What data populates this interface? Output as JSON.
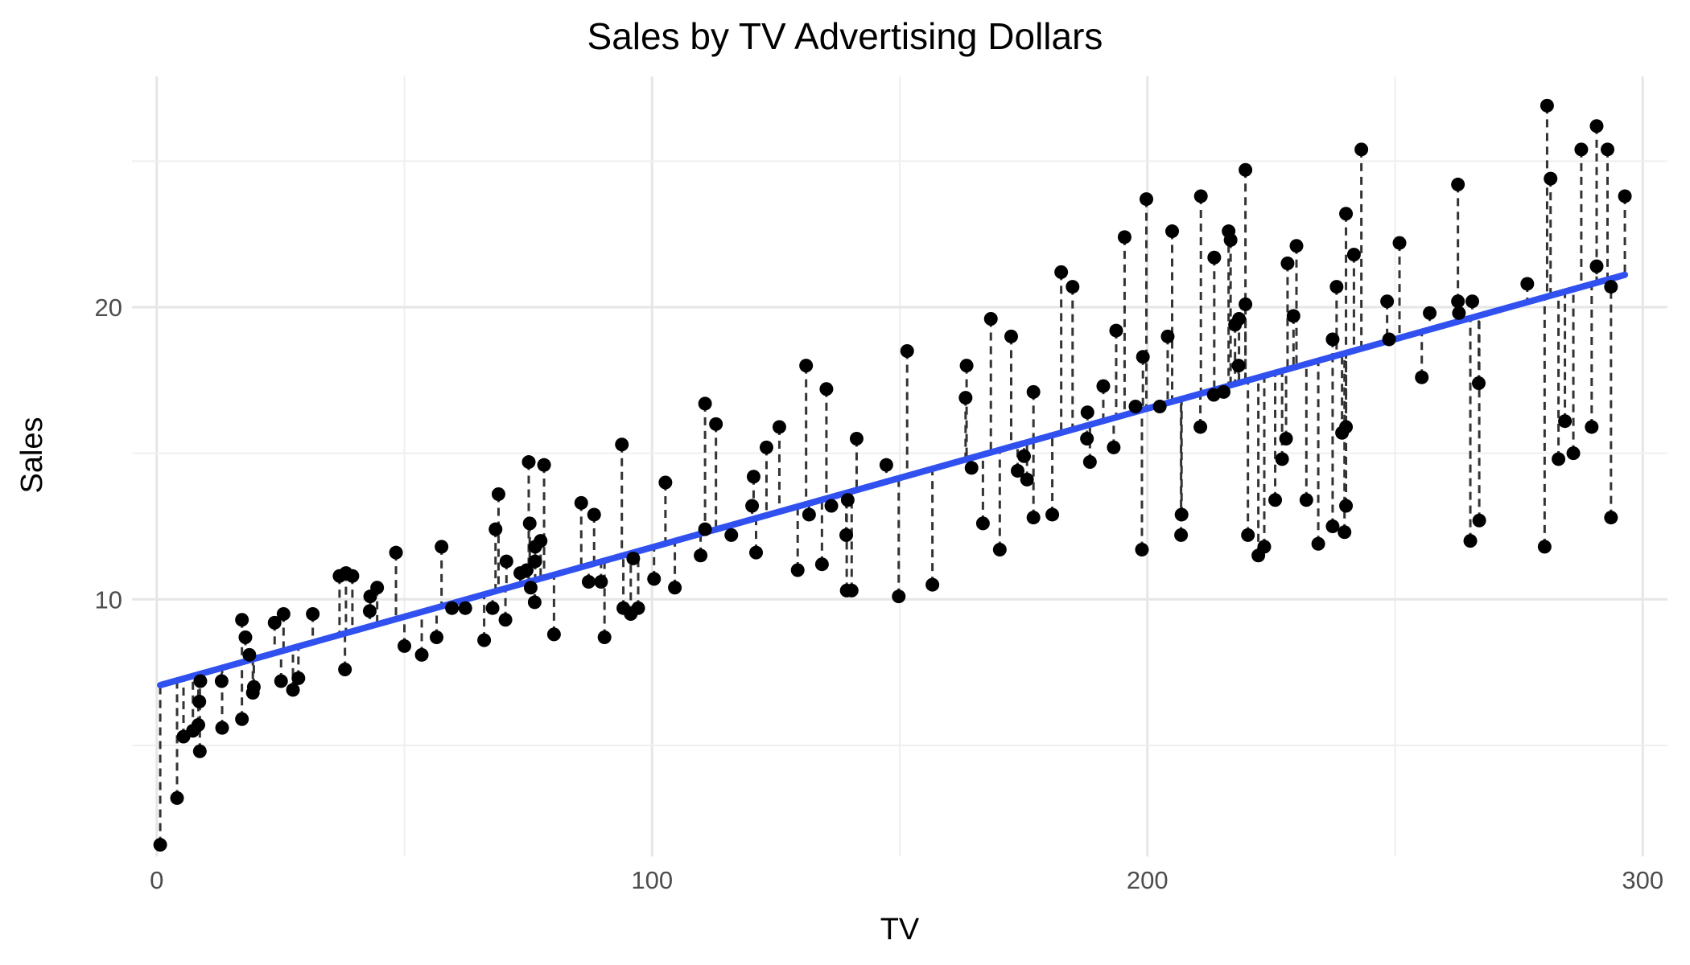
{
  "chart_data": {
    "type": "scatter",
    "title": "Sales by TV Advertising Dollars",
    "xlabel": "TV",
    "ylabel": "Sales",
    "xlim": [
      -5,
      305
    ],
    "ylim": [
      1.2,
      27.9
    ],
    "x_ticks": [
      0,
      100,
      200,
      300
    ],
    "y_ticks": [
      10,
      20
    ],
    "grid": true,
    "fit_line": {
      "intercept": 7.03,
      "slope": 0.0475,
      "x_range": [
        0.7,
        296.4
      ],
      "color": "#3050f0"
    },
    "residuals_shown": true,
    "points": [
      [
        0.7,
        1.6
      ],
      [
        4.1,
        3.2
      ],
      [
        5.4,
        5.3
      ],
      [
        7.3,
        5.5
      ],
      [
        8.4,
        5.7
      ],
      [
        8.6,
        6.5
      ],
      [
        8.7,
        4.8
      ],
      [
        8.8,
        7.2
      ],
      [
        13.1,
        7.2
      ],
      [
        13.2,
        5.6
      ],
      [
        17.2,
        5.9
      ],
      [
        17.9,
        8.7
      ],
      [
        17.2,
        9.3
      ],
      [
        18.7,
        8.1
      ],
      [
        19.4,
        6.8
      ],
      [
        19.6,
        7.0
      ],
      [
        23.8,
        9.2
      ],
      [
        25.1,
        7.2
      ],
      [
        25.6,
        9.5
      ],
      [
        27.5,
        6.9
      ],
      [
        28.6,
        7.3
      ],
      [
        31.5,
        9.5
      ],
      [
        36.9,
        10.8
      ],
      [
        38.2,
        10.9
      ],
      [
        38.0,
        7.6
      ],
      [
        39.5,
        10.8
      ],
      [
        43.0,
        9.6
      ],
      [
        43.1,
        10.1
      ],
      [
        44.5,
        10.4
      ],
      [
        48.3,
        11.6
      ],
      [
        50.0,
        8.4
      ],
      [
        53.5,
        8.1
      ],
      [
        56.5,
        8.7
      ],
      [
        57.5,
        11.8
      ],
      [
        59.6,
        9.7
      ],
      [
        62.3,
        9.7
      ],
      [
        66.1,
        8.6
      ],
      [
        67.8,
        9.7
      ],
      [
        68.4,
        12.4
      ],
      [
        69.0,
        13.6
      ],
      [
        70.4,
        9.3
      ],
      [
        70.6,
        11.3
      ],
      [
        73.4,
        10.9
      ],
      [
        74.7,
        11.0
      ],
      [
        75.1,
        14.7
      ],
      [
        75.3,
        12.6
      ],
      [
        75.5,
        10.4
      ],
      [
        76.3,
        9.9
      ],
      [
        76.4,
        11.3
      ],
      [
        76.4,
        11.8
      ],
      [
        77.5,
        12.0
      ],
      [
        78.2,
        14.6
      ],
      [
        80.2,
        8.8
      ],
      [
        85.7,
        13.3
      ],
      [
        87.2,
        10.6
      ],
      [
        88.3,
        12.9
      ],
      [
        89.7,
        10.6
      ],
      [
        90.4,
        8.7
      ],
      [
        93.9,
        15.3
      ],
      [
        94.2,
        9.7
      ],
      [
        95.7,
        9.5
      ],
      [
        96.2,
        11.4
      ],
      [
        97.2,
        9.7
      ],
      [
        100.4,
        10.7
      ],
      [
        102.7,
        14.0
      ],
      [
        104.6,
        10.4
      ],
      [
        109.8,
        11.5
      ],
      [
        110.7,
        12.4
      ],
      [
        112.9,
        16.0
      ],
      [
        110.7,
        16.7
      ],
      [
        116.0,
        12.2
      ],
      [
        120.2,
        13.2
      ],
      [
        120.5,
        14.2
      ],
      [
        121.0,
        11.6
      ],
      [
        123.1,
        15.2
      ],
      [
        125.7,
        15.9
      ],
      [
        129.4,
        11.0
      ],
      [
        131.1,
        18.0
      ],
      [
        131.7,
        12.9
      ],
      [
        134.3,
        11.2
      ],
      [
        136.2,
        13.2
      ],
      [
        135.2,
        17.2
      ],
      [
        139.2,
        12.2
      ],
      [
        139.3,
        10.3
      ],
      [
        139.5,
        13.4
      ],
      [
        140.3,
        10.3
      ],
      [
        141.3,
        15.5
      ],
      [
        147.3,
        14.6
      ],
      [
        149.8,
        10.1
      ],
      [
        151.5,
        18.5
      ],
      [
        156.6,
        10.5
      ],
      [
        163.3,
        16.9
      ],
      [
        163.5,
        18.0
      ],
      [
        164.5,
        14.5
      ],
      [
        166.8,
        12.6
      ],
      [
        168.4,
        19.6
      ],
      [
        170.2,
        11.7
      ],
      [
        172.5,
        19.0
      ],
      [
        173.8,
        14.4
      ],
      [
        175.1,
        14.9
      ],
      [
        175.7,
        14.1
      ],
      [
        177.0,
        17.1
      ],
      [
        177.0,
        12.8
      ],
      [
        180.8,
        12.9
      ],
      [
        182.6,
        21.2
      ],
      [
        184.9,
        20.7
      ],
      [
        187.8,
        15.5
      ],
      [
        187.9,
        16.4
      ],
      [
        188.4,
        14.7
      ],
      [
        191.1,
        17.3
      ],
      [
        193.2,
        15.2
      ],
      [
        193.7,
        19.2
      ],
      [
        195.4,
        22.4
      ],
      [
        197.6,
        16.6
      ],
      [
        198.9,
        11.7
      ],
      [
        199.1,
        18.3
      ],
      [
        199.8,
        23.7
      ],
      [
        202.5,
        16.6
      ],
      [
        204.1,
        19.0
      ],
      [
        205.0,
        22.6
      ],
      [
        206.9,
        12.9
      ],
      [
        206.8,
        12.2
      ],
      [
        210.7,
        15.9
      ],
      [
        210.8,
        23.8
      ],
      [
        213.4,
        17.0
      ],
      [
        213.5,
        21.7
      ],
      [
        215.4,
        17.1
      ],
      [
        216.4,
        22.6
      ],
      [
        216.8,
        22.3
      ],
      [
        217.7,
        19.4
      ],
      [
        218.4,
        18.0
      ],
      [
        218.5,
        19.6
      ],
      [
        219.8,
        20.1
      ],
      [
        219.8,
        24.7
      ],
      [
        220.3,
        12.2
      ],
      [
        222.4,
        11.5
      ],
      [
        223.6,
        11.8
      ],
      [
        225.8,
        13.4
      ],
      [
        227.2,
        14.8
      ],
      [
        228.0,
        15.5
      ],
      [
        228.3,
        21.5
      ],
      [
        229.5,
        19.7
      ],
      [
        230.1,
        22.1
      ],
      [
        232.1,
        13.4
      ],
      [
        234.5,
        11.9
      ],
      [
        237.4,
        12.5
      ],
      [
        237.4,
        18.9
      ],
      [
        238.2,
        20.7
      ],
      [
        239.3,
        15.7
      ],
      [
        239.8,
        12.3
      ],
      [
        240.1,
        13.2
      ],
      [
        240.1,
        15.9
      ],
      [
        240.1,
        23.2
      ],
      [
        241.7,
        21.8
      ],
      [
        243.2,
        25.4
      ],
      [
        248.4,
        20.2
      ],
      [
        248.8,
        18.9
      ],
      [
        250.9,
        22.2
      ],
      [
        255.4,
        17.6
      ],
      [
        262.7,
        24.2
      ],
      [
        262.9,
        19.8
      ],
      [
        265.2,
        12.0
      ],
      [
        265.6,
        20.2
      ],
      [
        266.9,
        17.4
      ],
      [
        267.0,
        12.7
      ],
      [
        276.7,
        20.8
      ],
      [
        280.2,
        11.8
      ],
      [
        280.7,
        26.9
      ],
      [
        281.4,
        24.4
      ],
      [
        283.0,
        14.8
      ],
      [
        284.3,
        16.1
      ],
      [
        286.0,
        15.0
      ],
      [
        287.6,
        25.4
      ],
      [
        289.7,
        15.9
      ],
      [
        290.7,
        26.2
      ],
      [
        292.9,
        25.4
      ],
      [
        293.6,
        12.8
      ],
      [
        296.4,
        23.8
      ],
      [
        290.7,
        21.4
      ],
      [
        293.6,
        20.7
      ],
      [
        262.7,
        20.2
      ],
      [
        257.0,
        19.8
      ]
    ]
  }
}
